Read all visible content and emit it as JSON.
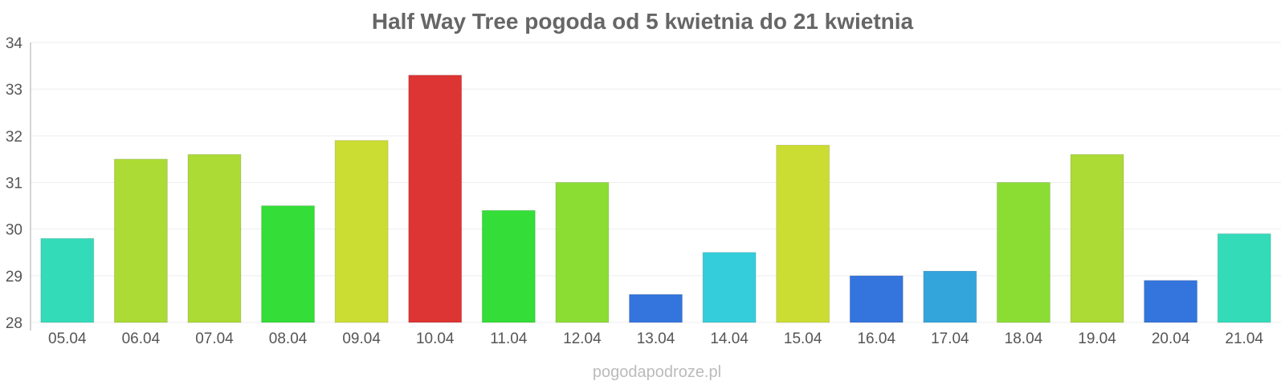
{
  "chart_data": {
    "type": "bar",
    "title": "Half Way Tree pogoda od 5 kwietnia do 21 kwietnia",
    "xlabel": "",
    "ylabel": "",
    "ylim": [
      28,
      34
    ],
    "yticks": [
      "28",
      "29",
      "30",
      "31",
      "32",
      "33",
      "34"
    ],
    "grid": true,
    "legend": "none",
    "categories": [
      "05.04",
      "06.04",
      "07.04",
      "08.04",
      "09.04",
      "10.04",
      "11.04",
      "12.04",
      "13.04",
      "14.04",
      "15.04",
      "16.04",
      "17.04",
      "18.04",
      "19.04",
      "20.04",
      "21.04"
    ],
    "values": [
      29.8,
      31.5,
      31.6,
      30.5,
      31.9,
      33.3,
      30.4,
      31.0,
      28.6,
      29.5,
      31.8,
      29.0,
      29.1,
      31.0,
      31.6,
      28.9,
      29.9
    ],
    "colors": [
      "#34dbb9",
      "#abdb34",
      "#abdb34",
      "#34dd38",
      "#cbdd32",
      "#dd3434",
      "#34dd38",
      "#8bdd34",
      "#3474dd",
      "#34cddb",
      "#cbdd32",
      "#3474dd",
      "#34a5db",
      "#8bdd34",
      "#abdb34",
      "#3474dd",
      "#34dbb9"
    ]
  },
  "footer": {
    "credit": "pogodapodroze.pl"
  }
}
